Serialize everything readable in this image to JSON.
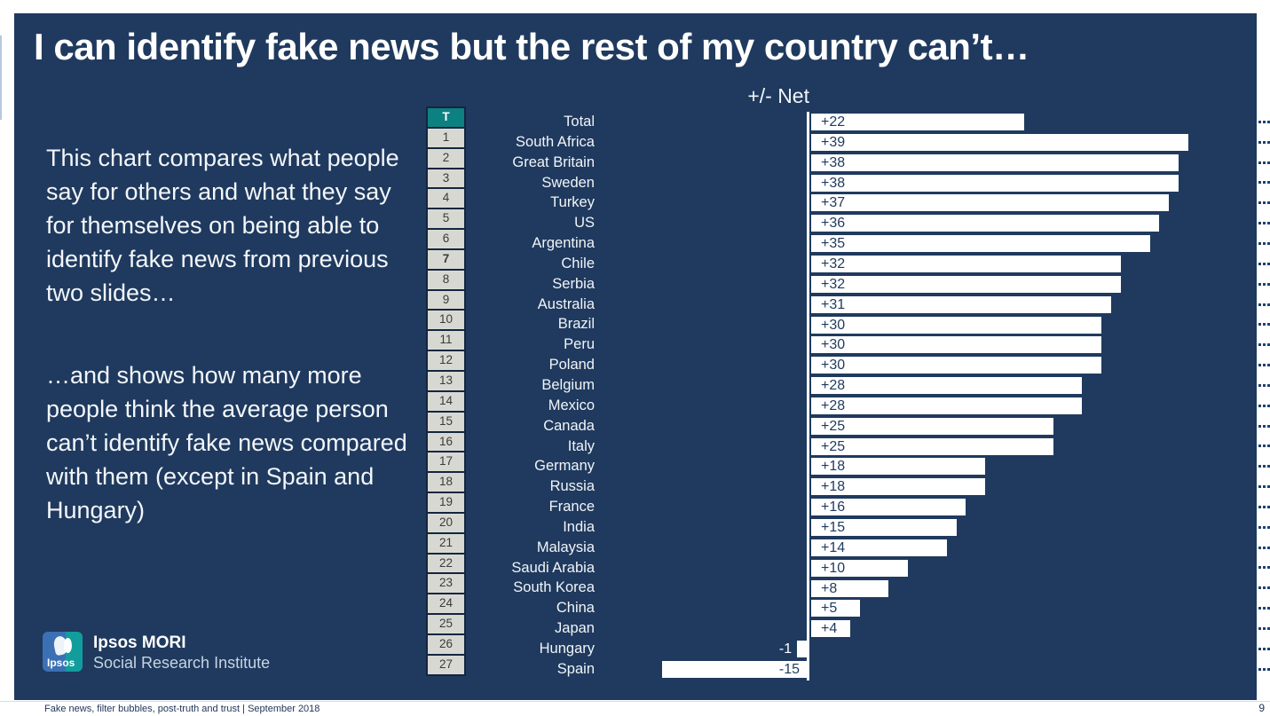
{
  "page": {
    "title": "I can identify fake news but the rest of my country can’t…",
    "commentary": {
      "p1": "This chart compares what people say for others and what they say for themselves on being able to identify fake news from previous two slides…",
      "p2": "…and shows how many more people think the average person can’t identify fake news compared with them (except in Spain and Hungary)"
    },
    "logo": {
      "brand": "Ipsos",
      "org": "Ipsos MORI",
      "suborg": "Social Research Institute"
    },
    "footer": {
      "left": "Fake news, filter bubbles, post-truth and trust | September 2018",
      "page_number": "9"
    }
  },
  "chart_data": {
    "type": "bar",
    "orientation": "horizontal",
    "title": "+/- Net",
    "axis_header": "+/- Net",
    "xlim": [
      -15,
      45
    ],
    "rank_header": "T",
    "highlighted_rank": "7",
    "legend": "none",
    "grid": "off",
    "rows": [
      {
        "rank": "T",
        "country": "Total",
        "value": 22,
        "label": "+22"
      },
      {
        "rank": "1",
        "country": "South Africa",
        "value": 39,
        "label": "+39"
      },
      {
        "rank": "2",
        "country": "Great Britain",
        "value": 38,
        "label": "+38"
      },
      {
        "rank": "3",
        "country": "Sweden",
        "value": 38,
        "label": "+38"
      },
      {
        "rank": "4",
        "country": "Turkey",
        "value": 37,
        "label": "+37"
      },
      {
        "rank": "5",
        "country": "US",
        "value": 36,
        "label": "+36"
      },
      {
        "rank": "6",
        "country": "Argentina",
        "value": 35,
        "label": "+35"
      },
      {
        "rank": "7",
        "country": "Chile",
        "value": 32,
        "label": "+32"
      },
      {
        "rank": "8",
        "country": "Serbia",
        "value": 32,
        "label": "+32"
      },
      {
        "rank": "9",
        "country": "Australia",
        "value": 31,
        "label": "+31"
      },
      {
        "rank": "10",
        "country": "Brazil",
        "value": 30,
        "label": "+30"
      },
      {
        "rank": "11",
        "country": "Peru",
        "value": 30,
        "label": "+30"
      },
      {
        "rank": "12",
        "country": "Poland",
        "value": 30,
        "label": "+30"
      },
      {
        "rank": "13",
        "country": "Belgium",
        "value": 28,
        "label": "+28"
      },
      {
        "rank": "14",
        "country": "Mexico",
        "value": 28,
        "label": "+28"
      },
      {
        "rank": "15",
        "country": "Canada",
        "value": 25,
        "label": "+25"
      },
      {
        "rank": "16",
        "country": "Italy",
        "value": 25,
        "label": "+25"
      },
      {
        "rank": "17",
        "country": "Germany",
        "value": 18,
        "label": "+18"
      },
      {
        "rank": "18",
        "country": "Russia",
        "value": 18,
        "label": "+18"
      },
      {
        "rank": "19",
        "country": "France",
        "value": 16,
        "label": "+16"
      },
      {
        "rank": "20",
        "country": "India",
        "value": 15,
        "label": "+15"
      },
      {
        "rank": "21",
        "country": "Malaysia",
        "value": 14,
        "label": "+14"
      },
      {
        "rank": "22",
        "country": "Saudi Arabia",
        "value": 10,
        "label": "+10"
      },
      {
        "rank": "23",
        "country": "South Korea",
        "value": 8,
        "label": "+8"
      },
      {
        "rank": "24",
        "country": "China",
        "value": 5,
        "label": "+5"
      },
      {
        "rank": "25",
        "country": "Japan",
        "value": 4,
        "label": "+4"
      },
      {
        "rank": "26",
        "country": "Hungary",
        "value": -1,
        "label": "-1"
      },
      {
        "rank": "27",
        "country": "Spain",
        "value": -15,
        "label": "-15"
      }
    ],
    "colors": {
      "slide_bg": "#1f3a5e",
      "bar_fill": "#ffffff",
      "bar_label": "#1f3a5e",
      "rank_header_bg": "#0d8181",
      "rank_cell_bg": "#d8d8d3",
      "dotted_guides": "#23406b"
    }
  }
}
